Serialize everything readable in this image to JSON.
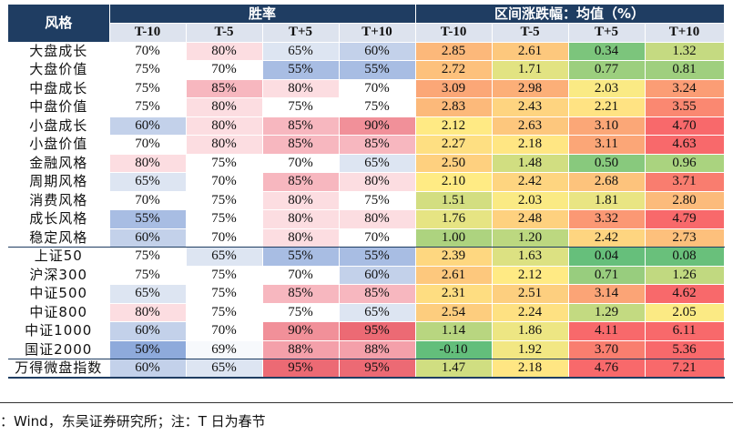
{
  "header": {
    "style_label": "风格",
    "win_rate_label": "胜率",
    "change_label": "区间涨跌幅：均值（%）",
    "periods": [
      "T-10",
      "T-5",
      "T+5",
      "T+10"
    ]
  },
  "rows": [
    {
      "name": "大盘成长",
      "win": [
        "70%",
        "80%",
        "65%",
        "60%"
      ],
      "chg": [
        "2.85",
        "2.61",
        "0.34",
        "1.32"
      ]
    },
    {
      "name": "大盘价值",
      "win": [
        "75%",
        "70%",
        "55%",
        "55%"
      ],
      "chg": [
        "2.72",
        "1.71",
        "0.77",
        "0.81"
      ]
    },
    {
      "name": "中盘成长",
      "win": [
        "75%",
        "85%",
        "80%",
        "70%"
      ],
      "chg": [
        "3.09",
        "2.98",
        "2.03",
        "3.24"
      ]
    },
    {
      "name": "中盘价值",
      "win": [
        "75%",
        "80%",
        "75%",
        "75%"
      ],
      "chg": [
        "2.83",
        "2.43",
        "2.21",
        "3.55"
      ]
    },
    {
      "name": "小盘成长",
      "win": [
        "60%",
        "80%",
        "85%",
        "90%"
      ],
      "chg": [
        "2.12",
        "2.63",
        "3.10",
        "4.70"
      ]
    },
    {
      "name": "小盘价值",
      "win": [
        "70%",
        "80%",
        "85%",
        "85%"
      ],
      "chg": [
        "2.27",
        "2.18",
        "3.11",
        "4.63"
      ]
    },
    {
      "name": "金融风格",
      "win": [
        "80%",
        "75%",
        "70%",
        "65%"
      ],
      "chg": [
        "2.50",
        "1.48",
        "0.50",
        "0.96"
      ]
    },
    {
      "name": "周期风格",
      "win": [
        "65%",
        "70%",
        "85%",
        "80%"
      ],
      "chg": [
        "2.10",
        "2.42",
        "2.68",
        "3.71"
      ]
    },
    {
      "name": "消费风格",
      "win": [
        "70%",
        "75%",
        "80%",
        "75%"
      ],
      "chg": [
        "1.51",
        "2.03",
        "1.81",
        "2.80"
      ]
    },
    {
      "name": "成长风格",
      "win": [
        "55%",
        "75%",
        "80%",
        "80%"
      ],
      "chg": [
        "1.76",
        "2.48",
        "3.32",
        "4.79"
      ]
    },
    {
      "name": "稳定风格",
      "win": [
        "60%",
        "70%",
        "80%",
        "70%"
      ],
      "chg": [
        "1.00",
        "1.20",
        "2.42",
        "2.73"
      ]
    },
    {
      "name": "上证50",
      "win": [
        "75%",
        "65%",
        "55%",
        "55%"
      ],
      "chg": [
        "2.39",
        "1.63",
        "0.04",
        "0.08"
      ]
    },
    {
      "name": "沪深300",
      "win": [
        "75%",
        "75%",
        "70%",
        "60%"
      ],
      "chg": [
        "2.61",
        "2.12",
        "0.71",
        "1.26"
      ]
    },
    {
      "name": "中证500",
      "win": [
        "65%",
        "75%",
        "85%",
        "85%"
      ],
      "chg": [
        "2.31",
        "2.51",
        "3.14",
        "4.62"
      ]
    },
    {
      "name": "中证800",
      "win": [
        "80%",
        "75%",
        "75%",
        "65%"
      ],
      "chg": [
        "2.54",
        "2.24",
        "1.29",
        "2.05"
      ]
    },
    {
      "name": "中证1000",
      "win": [
        "60%",
        "70%",
        "90%",
        "95%"
      ],
      "chg": [
        "1.14",
        "1.86",
        "4.11",
        "6.11"
      ]
    },
    {
      "name": "国证2000",
      "win": [
        "50%",
        "69%",
        "88%",
        "88%"
      ],
      "chg": [
        "-0.10",
        "1.92",
        "3.70",
        "5.36"
      ]
    },
    {
      "name": "万得微盘指数",
      "win": [
        "60%",
        "65%",
        "95%",
        "95%"
      ],
      "chg": [
        "1.47",
        "2.18",
        "4.76",
        "7.21"
      ]
    }
  ],
  "win_colors": {
    "50%": "#8eaadb",
    "55%": "#a8bde3",
    "60%": "#c3d1ea",
    "65%": "#dde5f2",
    "69%": "#f7f9fc",
    "70%": "#ffffff",
    "75%": "#ffffff",
    "80%": "#fcdde1",
    "85%": "#f7b7bf",
    "88%": "#f4a0aa",
    "90%": "#f19099",
    "95%": "#ec6a74"
  },
  "source_note": "：Wind，东吴证券研究所；注：T 日为春节"
}
